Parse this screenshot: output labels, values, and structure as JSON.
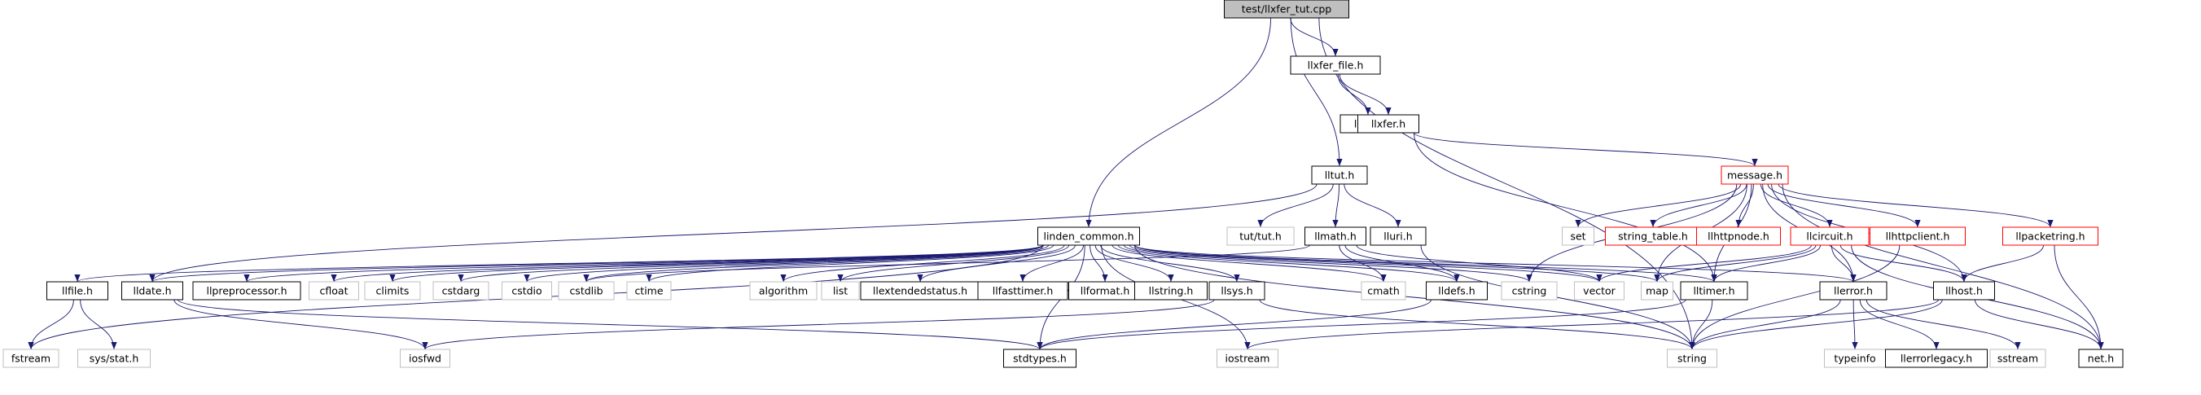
{
  "title": "test/llxfer_tut.cpp",
  "colors": {
    "edge": "#191970",
    "node_border": "#000000",
    "node_border_truncated": "#ff0000",
    "node_border_system": "#bfbfbf",
    "root_fill": "#bfbfbf",
    "node_fill": "#ffffff",
    "text": "#000000"
  },
  "nodes": [
    {
      "id": "root",
      "label": "test/llxfer_tut.cpp",
      "kind": "root"
    },
    {
      "id": "llxfer_file",
      "label": "llxfer_file.h",
      "kind": "normal"
    },
    {
      "id": "lldir",
      "label": "lldir.h",
      "kind": "normal"
    },
    {
      "id": "llxfer",
      "label": "llxfer.h",
      "kind": "normal"
    },
    {
      "id": "message",
      "label": "message.h",
      "kind": "truncated"
    },
    {
      "id": "lltut",
      "label": "lltut.h",
      "kind": "normal"
    },
    {
      "id": "tut",
      "label": "tut/tut.h",
      "kind": "system"
    },
    {
      "id": "llmath",
      "label": "llmath.h",
      "kind": "normal"
    },
    {
      "id": "lluri",
      "label": "lluri.h",
      "kind": "normal"
    },
    {
      "id": "linden_common",
      "label": "linden_common.h",
      "kind": "normal"
    },
    {
      "id": "set",
      "label": "set",
      "kind": "system"
    },
    {
      "id": "string_table",
      "label": "string_table.h",
      "kind": "truncated"
    },
    {
      "id": "llhttpnode",
      "label": "llhttpnode.h",
      "kind": "truncated"
    },
    {
      "id": "llcircuit",
      "label": "llcircuit.h",
      "kind": "truncated"
    },
    {
      "id": "llhttpclient",
      "label": "llhttpclient.h",
      "kind": "truncated"
    },
    {
      "id": "llpacketring",
      "label": "llpacketring.h",
      "kind": "truncated"
    },
    {
      "id": "llfile",
      "label": "llfile.h",
      "kind": "normal"
    },
    {
      "id": "lldate",
      "label": "lldate.h",
      "kind": "normal"
    },
    {
      "id": "llpreprocessor",
      "label": "llpreprocessor.h",
      "kind": "normal"
    },
    {
      "id": "cfloat",
      "label": "cfloat",
      "kind": "system"
    },
    {
      "id": "climits",
      "label": "climits",
      "kind": "system"
    },
    {
      "id": "cstdarg",
      "label": "cstdarg",
      "kind": "system"
    },
    {
      "id": "cstdio",
      "label": "cstdio",
      "kind": "system"
    },
    {
      "id": "cstdlib",
      "label": "cstdlib",
      "kind": "system"
    },
    {
      "id": "ctime",
      "label": "ctime",
      "kind": "system"
    },
    {
      "id": "algorithm",
      "label": "algorithm",
      "kind": "system"
    },
    {
      "id": "list",
      "label": "list",
      "kind": "system"
    },
    {
      "id": "llextendedstatus",
      "label": "llextendedstatus.h",
      "kind": "normal"
    },
    {
      "id": "llfasttimer",
      "label": "llfasttimer.h",
      "kind": "normal"
    },
    {
      "id": "llformat",
      "label": "llformat.h",
      "kind": "normal"
    },
    {
      "id": "llstring",
      "label": "llstring.h",
      "kind": "normal"
    },
    {
      "id": "llsys",
      "label": "llsys.h",
      "kind": "normal"
    },
    {
      "id": "cmath",
      "label": "cmath",
      "kind": "system"
    },
    {
      "id": "lldefs",
      "label": "lldefs.h",
      "kind": "normal"
    },
    {
      "id": "cstring",
      "label": "cstring",
      "kind": "system"
    },
    {
      "id": "vector",
      "label": "vector",
      "kind": "system"
    },
    {
      "id": "map",
      "label": "map",
      "kind": "system"
    },
    {
      "id": "lltimer",
      "label": "lltimer.h",
      "kind": "normal"
    },
    {
      "id": "llerror",
      "label": "llerror.h",
      "kind": "normal"
    },
    {
      "id": "llhost",
      "label": "llhost.h",
      "kind": "normal"
    },
    {
      "id": "net",
      "label": "net.h",
      "kind": "normal"
    },
    {
      "id": "fstream",
      "label": "fstream",
      "kind": "system"
    },
    {
      "id": "sys_stat",
      "label": "sys/stat.h",
      "kind": "system"
    },
    {
      "id": "iosfwd",
      "label": "iosfwd",
      "kind": "system"
    },
    {
      "id": "stdtypes",
      "label": "stdtypes.h",
      "kind": "normal"
    },
    {
      "id": "iostream",
      "label": "iostream",
      "kind": "system"
    },
    {
      "id": "string",
      "label": "string",
      "kind": "system"
    },
    {
      "id": "typeinfo",
      "label": "typeinfo",
      "kind": "system"
    },
    {
      "id": "llerrorlegacy",
      "label": "llerrorlegacy.h",
      "kind": "normal"
    },
    {
      "id": "sstream",
      "label": "sstream",
      "kind": "system"
    }
  ],
  "edges": [
    [
      "root",
      "llxfer_file"
    ],
    [
      "root",
      "lltut"
    ],
    [
      "root",
      "linden_common"
    ],
    [
      "root",
      "string"
    ],
    [
      "llxfer_file",
      "lldir"
    ],
    [
      "llxfer_file",
      "llxfer"
    ],
    [
      "llxfer",
      "message"
    ],
    [
      "llxfer",
      "lltimer"
    ],
    [
      "lltut",
      "tut"
    ],
    [
      "lltut",
      "llmath"
    ],
    [
      "lltut",
      "lluri"
    ],
    [
      "lltut",
      "lldate"
    ],
    [
      "llmath",
      "cmath"
    ],
    [
      "llmath",
      "cstdlib"
    ],
    [
      "llmath",
      "lldefs"
    ],
    [
      "llmath",
      "vector"
    ],
    [
      "lluri",
      "string"
    ],
    [
      "message",
      "set"
    ],
    [
      "message",
      "string_table"
    ],
    [
      "message",
      "llhttpnode"
    ],
    [
      "message",
      "llcircuit"
    ],
    [
      "message",
      "llhttpclient"
    ],
    [
      "message",
      "llpacketring"
    ],
    [
      "message",
      "llerror"
    ],
    [
      "message",
      "llhost"
    ],
    [
      "message",
      "net"
    ],
    [
      "message",
      "map"
    ],
    [
      "message",
      "cstring"
    ],
    [
      "message",
      "lltimer"
    ],
    [
      "llcircuit",
      "map"
    ],
    [
      "llcircuit",
      "vector"
    ],
    [
      "llcircuit",
      "lltimer"
    ],
    [
      "llcircuit",
      "llerror"
    ],
    [
      "llcircuit",
      "llhost"
    ],
    [
      "llcircuit",
      "net"
    ],
    [
      "llhttpclient",
      "string"
    ],
    [
      "llpacketring",
      "llhost"
    ],
    [
      "llpacketring",
      "net"
    ],
    [
      "llhost",
      "string"
    ],
    [
      "llhost",
      "net"
    ],
    [
      "llhost",
      "iostream"
    ],
    [
      "llerror",
      "typeinfo"
    ],
    [
      "llerror",
      "llerrorlegacy"
    ],
    [
      "llerror",
      "sstream"
    ],
    [
      "llerror",
      "string"
    ],
    [
      "linden_common",
      "llfile"
    ],
    [
      "linden_common",
      "lldate"
    ],
    [
      "linden_common",
      "llpreprocessor"
    ],
    [
      "linden_common",
      "cfloat"
    ],
    [
      "linden_common",
      "climits"
    ],
    [
      "linden_common",
      "cstdarg"
    ],
    [
      "linden_common",
      "cstdio"
    ],
    [
      "linden_common",
      "cstdlib"
    ],
    [
      "linden_common",
      "ctime"
    ],
    [
      "linden_common",
      "algorithm"
    ],
    [
      "linden_common",
      "list"
    ],
    [
      "linden_common",
      "llextendedstatus"
    ],
    [
      "linden_common",
      "llfasttimer"
    ],
    [
      "linden_common",
      "llformat"
    ],
    [
      "linden_common",
      "llstring"
    ],
    [
      "linden_common",
      "llsys"
    ],
    [
      "linden_common",
      "cmath"
    ],
    [
      "linden_common",
      "lldefs"
    ],
    [
      "linden_common",
      "cstring"
    ],
    [
      "linden_common",
      "vector"
    ],
    [
      "linden_common",
      "map"
    ],
    [
      "linden_common",
      "lltimer"
    ],
    [
      "linden_common",
      "llerror"
    ],
    [
      "linden_common",
      "fstream"
    ],
    [
      "linden_common",
      "iostream"
    ],
    [
      "linden_common",
      "string"
    ],
    [
      "linden_common",
      "stdtypes"
    ],
    [
      "llfile",
      "fstream"
    ],
    [
      "llfile",
      "sys_stat"
    ],
    [
      "lldate",
      "iosfwd"
    ],
    [
      "lldate",
      "stdtypes"
    ],
    [
      "llsys",
      "iosfwd"
    ],
    [
      "llsys",
      "string"
    ],
    [
      "lldefs",
      "stdtypes"
    ],
    [
      "lltimer",
      "stdtypes"
    ],
    [
      "lltimer",
      "string"
    ]
  ]
}
